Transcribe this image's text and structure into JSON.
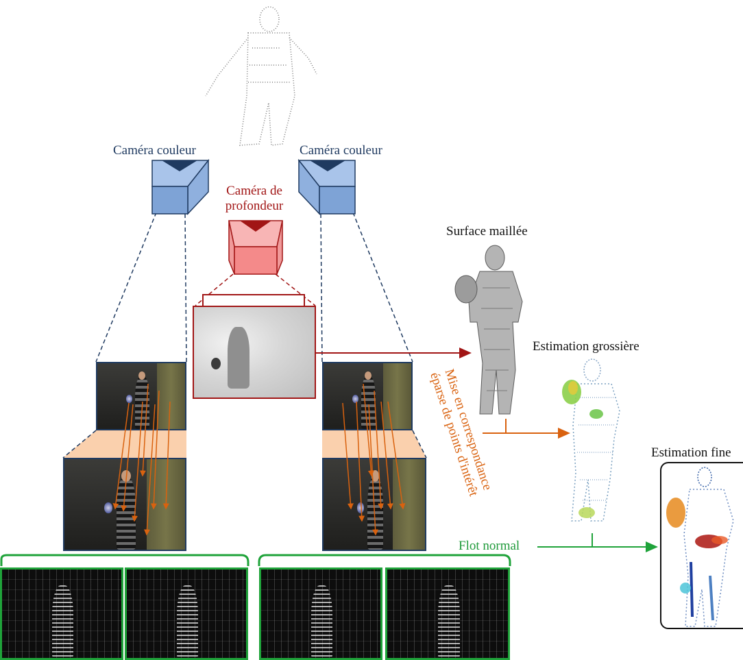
{
  "labels": {
    "color_camera_left": "Caméra couleur",
    "color_camera_right": "Caméra couleur",
    "depth_camera": [
      "Caméra de",
      "profondeur"
    ],
    "mesh_surface": "Surface maillée",
    "coarse_estimation": "Estimation grossière",
    "fine_estimation": "Estimation fine",
    "normal_flow": "Flot normal",
    "sparse_matching": [
      "Mise en correspondance",
      "éparse de points d'intérêt"
    ]
  },
  "colors": {
    "color_camera": "#1f3a60",
    "color_camera_fill": "#a9c4ea",
    "depth_camera": "#a11515",
    "depth_camera_fill": "#f48a8a",
    "orange_arrow": "#d9620f",
    "green_arrow": "#1fa33a",
    "dark_red_arrow": "#a11515",
    "projection_fill": "#f9c89f"
  },
  "icons": {
    "color_camera": "camera-frustum-icon",
    "depth_camera": "depth-camera-frustum-icon",
    "point_cloud": "point-cloud-figure"
  }
}
